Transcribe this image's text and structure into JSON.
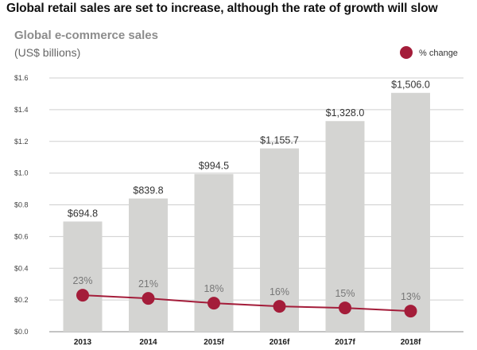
{
  "headline": "Global retail sales are set to increase, although the rate of growth will slow",
  "chart_data": {
    "type": "bar",
    "title": "Global e-commerce sales",
    "ylabel": "(US$ billions)",
    "categories": [
      "2013",
      "2014",
      "2015f",
      "2016f",
      "2017f",
      "2018f"
    ],
    "series": [
      {
        "name": "Global e-commerce sales",
        "values": [
          694.8,
          839.8,
          994.5,
          1155.7,
          1328.0,
          1506.0
        ],
        "labels": [
          "$694.8",
          "$839.8",
          "$994.5",
          "$1,155.7",
          "$1,328.0",
          "$1,506.0"
        ],
        "color": "#d4d4d2"
      },
      {
        "name": "% change",
        "type": "line",
        "values": [
          23,
          21,
          18,
          16,
          15,
          13
        ],
        "labels": [
          "23%",
          "21%",
          "18%",
          "16%",
          "15%",
          "13%"
        ],
        "color": "#a41d3a"
      }
    ],
    "ylim": [
      0,
      1.6
    ],
    "yunit": "trillions",
    "yticks": [
      "$0.0",
      "$0.2",
      "$0.4",
      "$0.6",
      "$0.8",
      "$1.0",
      "$1.2",
      "$1.4",
      "$1.6"
    ],
    "grid": true,
    "legend": {
      "label": "% change",
      "position": "top-right"
    }
  }
}
